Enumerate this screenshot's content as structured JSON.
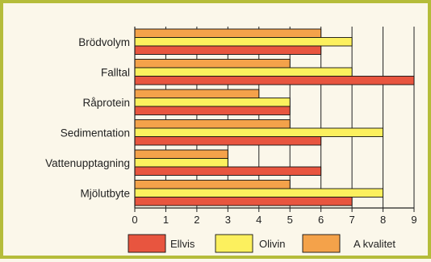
{
  "chart_data": {
    "type": "bar",
    "orientation": "horizontal",
    "title": "",
    "xlabel": "",
    "ylabel": "",
    "categories": [
      "Brödvolym",
      "Falltal",
      "Råprotein",
      "Sedimentation",
      "Vattenupptagning",
      "Mjölutbyte"
    ],
    "series": [
      {
        "name": "A kvalitet",
        "color": "#f4a24a",
        "values": [
          6,
          5,
          4,
          5,
          3,
          5
        ]
      },
      {
        "name": "Olivin",
        "color": "#fcf05e",
        "values": [
          7,
          7,
          5,
          8,
          3,
          8
        ]
      },
      {
        "name": "Ellvis",
        "color": "#e8553f",
        "values": [
          6,
          9,
          5,
          6,
          6,
          7
        ]
      }
    ],
    "legend_order": [
      "Ellvis",
      "Olivin",
      "A kvalitet"
    ],
    "xlim": [
      0,
      9
    ],
    "xticks": [
      "0",
      "1",
      "2",
      "3",
      "4",
      "5",
      "6",
      "7",
      "8",
      "9"
    ],
    "grid": "vertical",
    "legend_position": "bottom"
  },
  "colors": {
    "frame_border": "#b5bc3a",
    "background": "#fbf7ea"
  }
}
